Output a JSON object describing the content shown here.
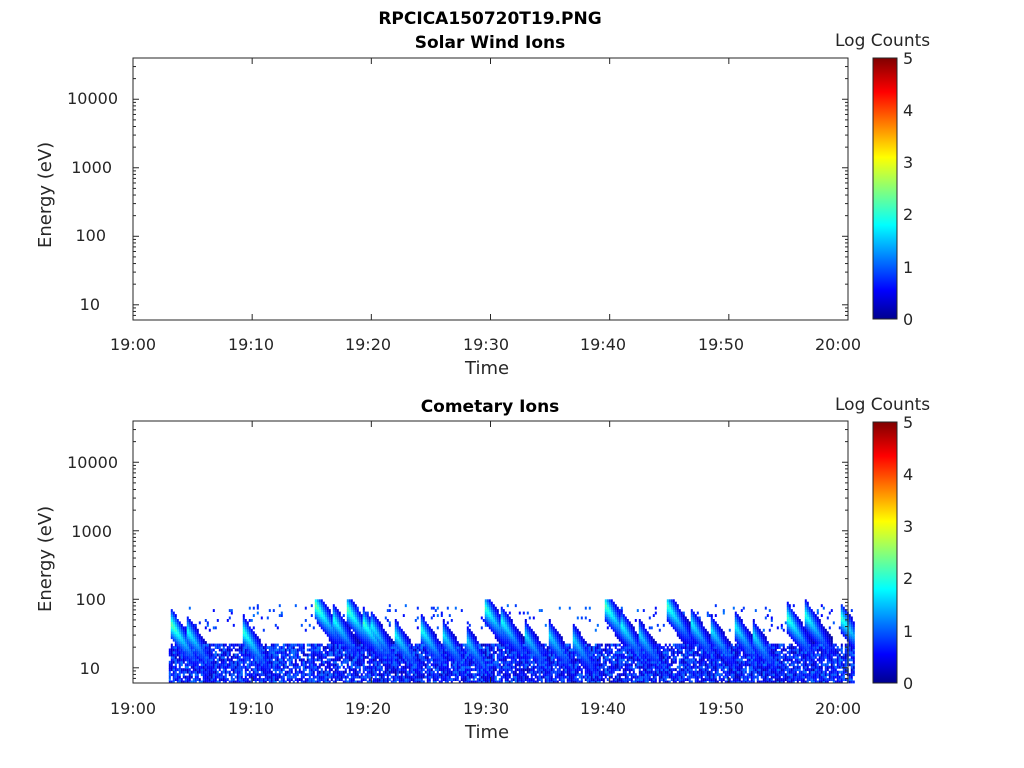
{
  "figure_title": "RPCICA150720T19.PNG",
  "chart_data": [
    {
      "type": "heatmap",
      "title": "Solar Wind Ions",
      "xlabel": "Time",
      "ylabel": "Energy (eV)",
      "yscale": "log",
      "ylim": [
        6,
        40000
      ],
      "xlim": [
        "19:00",
        "20:00"
      ],
      "xticks": [
        "19:00",
        "19:10",
        "19:20",
        "19:30",
        "19:40",
        "19:50",
        "20:00"
      ],
      "yticks": [
        "10",
        "100",
        "1000",
        "10000"
      ],
      "colorbar": {
        "label": "Log Counts",
        "range": [
          0,
          5
        ],
        "ticks": [
          "0",
          "1",
          "2",
          "3",
          "4",
          "5"
        ],
        "colormap": "jet"
      },
      "events": []
    },
    {
      "type": "heatmap",
      "title": "Cometary Ions",
      "xlabel": "Time",
      "ylabel": "Energy (eV)",
      "yscale": "log",
      "ylim": [
        6,
        40000
      ],
      "xlim": [
        "19:00",
        "20:00"
      ],
      "xticks": [
        "19:00",
        "19:10",
        "19:20",
        "19:30",
        "19:40",
        "19:50",
        "20:00"
      ],
      "yticks": [
        "10",
        "100",
        "1000",
        "10000"
      ],
      "colorbar": {
        "label": "Log Counts",
        "range": [
          0,
          5
        ],
        "ticks": [
          "0",
          "1",
          "2",
          "3",
          "4",
          "5"
        ],
        "colormap": "jet"
      },
      "data_start_minute": 3,
      "data_end_minute": 60.5,
      "background_energy_range": [
        6,
        22
      ],
      "noise_energy_range": [
        35,
        85
      ],
      "events": [
        {
          "t": 3.3,
          "emax": 40,
          "peak": 2.3
        },
        {
          "t": 4.5,
          "emax": 35,
          "peak": 2.0
        },
        {
          "t": 9.3,
          "emax": 32,
          "peak": 2.1
        },
        {
          "t": 15.3,
          "emax": 80,
          "peak": 2.4
        },
        {
          "t": 16.8,
          "emax": 50,
          "peak": 2.0
        },
        {
          "t": 18.0,
          "emax": 70,
          "peak": 2.3
        },
        {
          "t": 19.3,
          "emax": 45,
          "peak": 2.2
        },
        {
          "t": 20.0,
          "emax": 40,
          "peak": 1.9
        },
        {
          "t": 22.0,
          "emax": 30,
          "peak": 1.9
        },
        {
          "t": 24.2,
          "emax": 35,
          "peak": 2.0
        },
        {
          "t": 26.0,
          "emax": 30,
          "peak": 1.8
        },
        {
          "t": 28.0,
          "emax": 25,
          "peak": 1.7
        },
        {
          "t": 29.5,
          "emax": 75,
          "peak": 2.2
        },
        {
          "t": 31.0,
          "emax": 45,
          "peak": 1.9
        },
        {
          "t": 33.0,
          "emax": 28,
          "peak": 1.7
        },
        {
          "t": 35.0,
          "emax": 28,
          "peak": 1.7
        },
        {
          "t": 37.0,
          "emax": 25,
          "peak": 1.7
        },
        {
          "t": 39.6,
          "emax": 80,
          "peak": 2.3
        },
        {
          "t": 41.0,
          "emax": 40,
          "peak": 1.9
        },
        {
          "t": 42.5,
          "emax": 30,
          "peak": 1.7
        },
        {
          "t": 44.8,
          "emax": 80,
          "peak": 2.2
        },
        {
          "t": 46.8,
          "emax": 45,
          "peak": 1.9
        },
        {
          "t": 48.5,
          "emax": 35,
          "peak": 1.8
        },
        {
          "t": 50.5,
          "emax": 40,
          "peak": 1.9
        },
        {
          "t": 52.0,
          "emax": 30,
          "peak": 1.8
        },
        {
          "t": 55.0,
          "emax": 50,
          "peak": 2.1
        },
        {
          "t": 56.5,
          "emax": 55,
          "peak": 2.0
        },
        {
          "t": 59.5,
          "emax": 50,
          "peak": 2.1
        }
      ]
    }
  ]
}
